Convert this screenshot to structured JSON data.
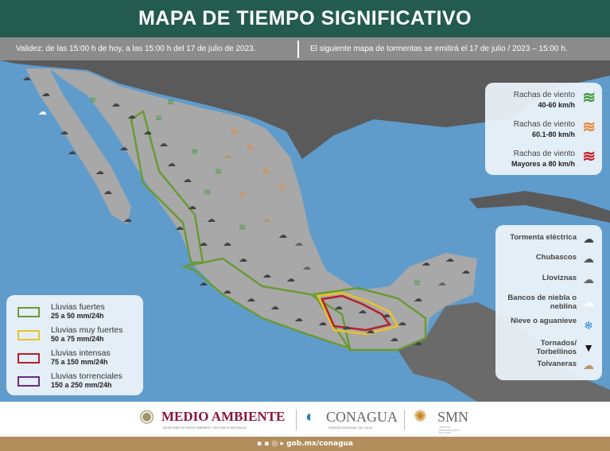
{
  "title": "MAPA DE TIEMPO SIGNIFICATIVO",
  "validity": {
    "left": "Validez: de las 15:00 h de hoy, a las 15:00 h del 17 de julio de 2023.",
    "right": "El siguiente mapa de tormentas se emitirá el 17 de julio / 2023 – 15:00 h."
  },
  "rain_legend": [
    {
      "label": "Lluvias fuertes",
      "range": "25 a 50 mm/24h",
      "color": "#6a9a35"
    },
    {
      "label": "Lluvias muy fuertes",
      "range": "50 a 75 mm/24h",
      "color": "#e8c32a"
    },
    {
      "label": "Lluvias intensas",
      "range": "75 a 150 mm/24h",
      "color": "#b5202a"
    },
    {
      "label": "Lluvias torrenciales",
      "range": "150 a 250 mm/24h",
      "color": "#6a2a86"
    }
  ],
  "wind_legend": [
    {
      "label": "Rachas de viento",
      "range": "40-60 km/h",
      "color": "#3f9a3a"
    },
    {
      "label": "Rachas de viento",
      "range": "60.1-80 km/h",
      "color": "#e88a3a"
    },
    {
      "label": "Rachas de viento",
      "range": "Mayores a 80 km/h",
      "color": "#c8202a"
    }
  ],
  "phenomena_legend": [
    {
      "label": "Tormenta eléctrica",
      "icon": "thunderstorm-icon"
    },
    {
      "label": "Chubascos",
      "icon": "showers-icon"
    },
    {
      "label": "Lloviznas",
      "icon": "drizzle-icon"
    },
    {
      "label": "Bancos de niebla o neblina",
      "icon": "fog-icon"
    },
    {
      "label": "Nieve o aguanieve",
      "icon": "snow-icon"
    },
    {
      "label": "Tornados/ Torbellinos",
      "icon": "tornado-icon"
    },
    {
      "label": "Tolvaneras",
      "icon": "dust-storm-icon"
    }
  ],
  "footer": {
    "medio_ambiente": "MEDIO AMBIENTE",
    "medio_ambiente_sub": "SECRETARÍA DE MEDIO AMBIENTE Y RECURSOS NATURALES",
    "conagua": "CONAGUA",
    "conagua_sub": "COMISIÓN NACIONAL DEL AGUA",
    "smn": "SMN",
    "smn_sub": "SERVICIO METEOROLÓGICO NACIONAL",
    "website": "gob.mx/conagua"
  }
}
